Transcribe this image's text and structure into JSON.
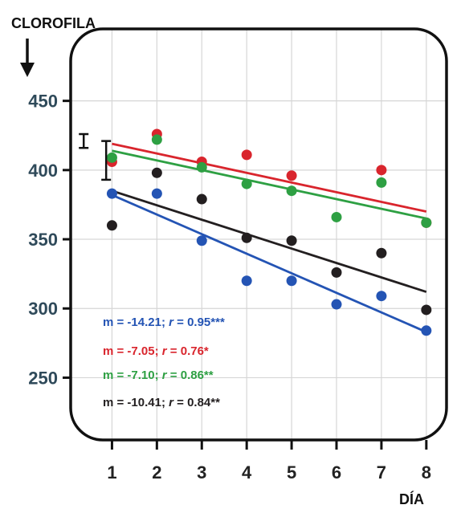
{
  "chart_data": {
    "type": "scatter",
    "ylabel": "CLOROFILA",
    "xlabel": "DÍA",
    "x": [
      1,
      2,
      3,
      4,
      5,
      6,
      7,
      8
    ],
    "y_ticks": [
      250,
      300,
      350,
      400,
      450
    ],
    "x_ticks": [
      1,
      2,
      3,
      4,
      5,
      6,
      7,
      8
    ],
    "ylim": [
      205,
      502
    ],
    "xlim": [
      0.08,
      8.45
    ],
    "grid": true,
    "error_bars": [
      {
        "x": 0.37,
        "low": 416,
        "high": 426
      },
      {
        "x": 0.87,
        "low": 393,
        "high": 421
      }
    ],
    "series": [
      {
        "color": "#2454b4",
        "values": [
          383,
          383,
          349,
          320,
          320,
          303,
          309,
          284
        ],
        "fit": [
          382,
          283
        ],
        "annotation": {
          "prefix": "m = -14.21; ",
          "r": "r",
          "suffix": " = 0.95***"
        }
      },
      {
        "color": "#d9252d",
        "values": [
          406,
          426,
          406,
          411,
          396,
          null,
          400,
          362
        ],
        "fit": [
          419,
          370
        ],
        "annotation": {
          "prefix": "m = -7.05; ",
          "r": "r",
          "suffix": " = 0.76*"
        }
      },
      {
        "color": "#2ea043",
        "values": [
          409,
          422,
          402,
          390,
          385,
          366,
          391,
          362
        ],
        "fit": [
          414,
          365
        ],
        "annotation": {
          "prefix": "m = -7.10; ",
          "r": "r",
          "suffix": " = 0.86**"
        }
      },
      {
        "color": "#231f20",
        "values": [
          360,
          398,
          379,
          351,
          349,
          326,
          340,
          299
        ],
        "fit": [
          385,
          312
        ],
        "annotation": {
          "prefix": "m = -10.41; ",
          "r": "r",
          "suffix": " = 0.84**"
        }
      }
    ]
  }
}
